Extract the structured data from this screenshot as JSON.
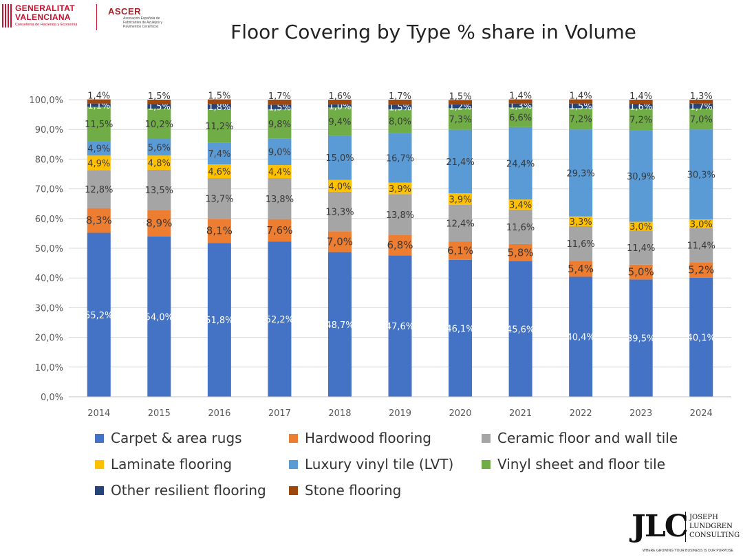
{
  "logos": {
    "generalitat": {
      "line1": "GENERALITAT",
      "line2": "VALENCIANA",
      "sub": "Conselleria de Hacienda y Economía"
    },
    "ascer": {
      "name": "ASCER",
      "sub": "Asociación Española de Fabricantes de Azulejos y Pavimentos Cerámicos"
    },
    "jlc": {
      "letters": "JLC",
      "name_line1": "JOSEPH",
      "name_line2": "LUNDGREN",
      "name_line3": "CONSULTING",
      "tagline": "WHERE GROWING YOUR BUSINESS IS OUR PURPOSE"
    }
  },
  "chart_data": {
    "type": "bar",
    "stacked": true,
    "title": "Floor Covering by Type % share in Volume",
    "xlabel": "",
    "ylabel": "",
    "ylim": [
      0,
      100
    ],
    "yticks": [
      "0,0%",
      "10,0%",
      "20,0%",
      "30,0%",
      "40,0%",
      "50,0%",
      "60,0%",
      "70,0%",
      "80,0%",
      "90,0%",
      "100,0%"
    ],
    "categories": [
      "2014",
      "2015",
      "2016",
      "2017",
      "2018",
      "2019",
      "2020",
      "2021",
      "2022",
      "2023",
      "2024"
    ],
    "series": [
      {
        "name": "Carpet & area rugs",
        "color": "#4472c4",
        "labelColor": "#ffffff",
        "values": [
          55.2,
          54.0,
          51.8,
          52.2,
          48.7,
          47.6,
          46.1,
          45.6,
          40.4,
          39.5,
          40.1
        ],
        "labels": [
          "55,2%",
          "54,0%",
          "51,8%",
          "52,2%",
          "48,7%",
          "47,6%",
          "46,1%",
          "45,6%",
          "40,4%",
          "39,5%",
          "40,1%"
        ]
      },
      {
        "name": "Hardwood flooring",
        "color": "#ed7d31",
        "labelColor": "#3a3a3a",
        "values": [
          8.3,
          8.9,
          8.1,
          7.6,
          7.0,
          6.8,
          6.1,
          5.8,
          5.4,
          5.0,
          5.2
        ],
        "labels": [
          "8,3%",
          "8,9%",
          "8,1%",
          "7,6%",
          "7,0%",
          "6,8%",
          "6,1%",
          "5,8%",
          "5,4%",
          "5,0%",
          "5,2%"
        ]
      },
      {
        "name": "Ceramic floor and wall tile",
        "color": "#a5a5a5",
        "labelColor": "#3a3a3a",
        "values": [
          12.8,
          13.5,
          13.7,
          13.8,
          13.3,
          13.8,
          12.4,
          11.6,
          11.6,
          11.4,
          11.4
        ],
        "labels": [
          "12,8%",
          "13,5%",
          "13,7%",
          "13,8%",
          "13,3%",
          "13,8%",
          "12,4%",
          "11,6%",
          "11,6%",
          "11,4%",
          "11,4%"
        ]
      },
      {
        "name": "Laminate flooring",
        "color": "#ffc000",
        "labelColor": "#3a3a3a",
        "values": [
          4.9,
          4.8,
          4.6,
          4.4,
          4.0,
          3.9,
          3.9,
          3.4,
          3.3,
          3.0,
          3.0
        ],
        "labels": [
          "4,9%",
          "4,8%",
          "4,6%",
          "4,4%",
          "4,0%",
          "3,9%",
          "3,9%",
          "3,4%",
          "3,3%",
          "3,0%",
          "3,0%"
        ]
      },
      {
        "name": "Luxury vinyl tile (LVT)",
        "color": "#5b9bd5",
        "labelColor": "#3a3a3a",
        "values": [
          4.9,
          5.6,
          7.4,
          9.0,
          15.0,
          16.7,
          21.4,
          24.4,
          29.3,
          30.9,
          30.3
        ],
        "labels": [
          "4,9%",
          "5,6%",
          "7,4%",
          "9,0%",
          "15,0%",
          "16,7%",
          "21,4%",
          "24,4%",
          "29,3%",
          "30,9%",
          "30,3%"
        ]
      },
      {
        "name": "Vinyl sheet and floor tile",
        "color": "#70ad47",
        "labelColor": "#3a3a3a",
        "values": [
          11.5,
          10.2,
          11.2,
          9.8,
          9.4,
          8.0,
          7.3,
          6.6,
          7.2,
          7.2,
          7.0
        ],
        "labels": [
          "11,5%",
          "10,2%",
          "11,2%",
          "9,8%",
          "9,4%",
          "8,0%",
          "7,3%",
          "6,6%",
          "7,2%",
          "7,2%",
          "7,0%"
        ]
      },
      {
        "name": "Other resilient flooring",
        "color": "#264478",
        "labelColor": "#ffffff",
        "values": [
          1.1,
          1.5,
          1.8,
          1.5,
          1.0,
          1.5,
          1.2,
          1.3,
          1.5,
          1.6,
          1.7
        ],
        "labels": [
          "1,1%",
          "1,5%",
          "1,8%",
          "1,5%",
          "1,0%",
          "1,5%",
          "1,2%",
          "1,3%",
          "1,5%",
          "1,6%",
          "1,7%"
        ]
      },
      {
        "name": "Stone flooring",
        "color": "#9e480e",
        "labelColor": "#3a3a3a",
        "values": [
          1.4,
          1.5,
          1.5,
          1.7,
          1.6,
          1.7,
          1.5,
          1.4,
          1.4,
          1.4,
          1.3
        ],
        "labels": [
          "1,4%",
          "1,5%",
          "1,5%",
          "1,7%",
          "1,6%",
          "1,7%",
          "1,5%",
          "1,4%",
          "1,4%",
          "1,4%",
          "1,3%"
        ]
      }
    ],
    "legend_position": "bottom",
    "grid": true
  }
}
